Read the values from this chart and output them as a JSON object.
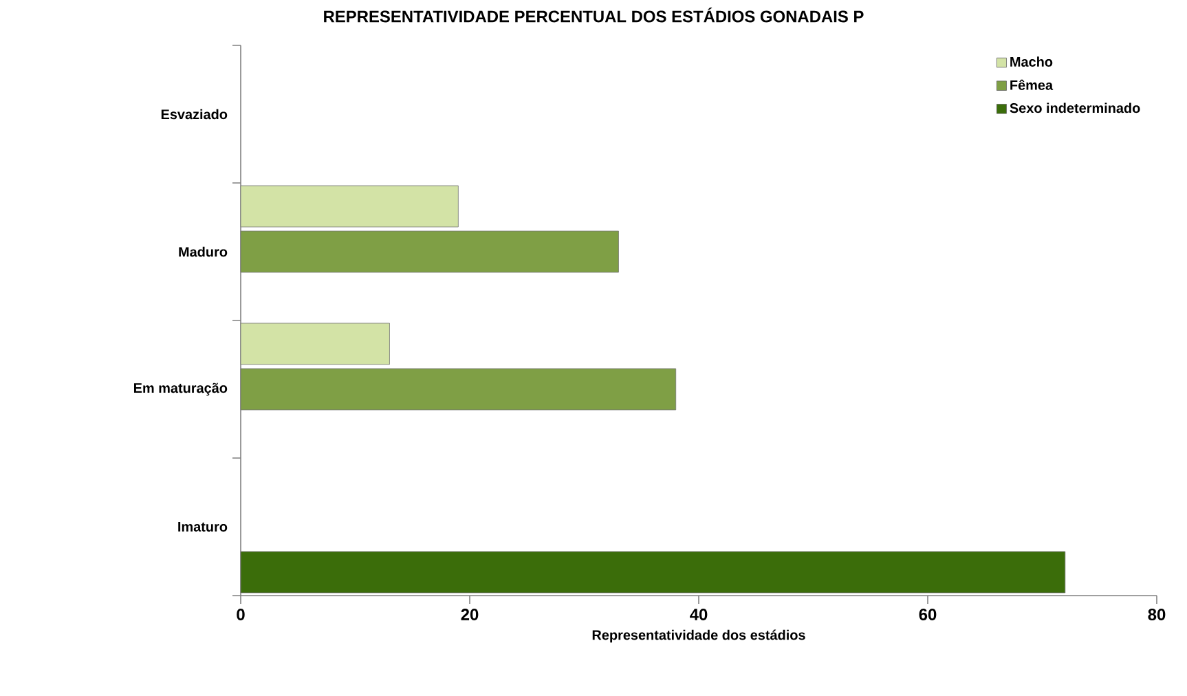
{
  "chart_data": {
    "type": "bar",
    "orientation": "horizontal",
    "title": "REPRESENTATIVIDADE PERCENTUAL DOS ESTÁDIOS GONADAIS P",
    "xlabel": "Representatividade dos estádios",
    "categories": [
      "Esvaziado",
      "Maduro",
      "Em maturação",
      "Imaturo"
    ],
    "series": [
      {
        "name": "Macho",
        "color": "#d3e3a6",
        "values": [
          null,
          19,
          13,
          null
        ]
      },
      {
        "name": "Fêmea",
        "color": "#7f9f45",
        "values": [
          null,
          33,
          38,
          null
        ]
      },
      {
        "name": "Sexo indeterminado",
        "color": "#3b6d0a",
        "values": [
          null,
          null,
          null,
          72
        ]
      }
    ],
    "xlim": [
      0,
      80
    ],
    "xticks": [
      0,
      20,
      40,
      60,
      80
    ],
    "legend": "top right",
    "grid": false
  }
}
